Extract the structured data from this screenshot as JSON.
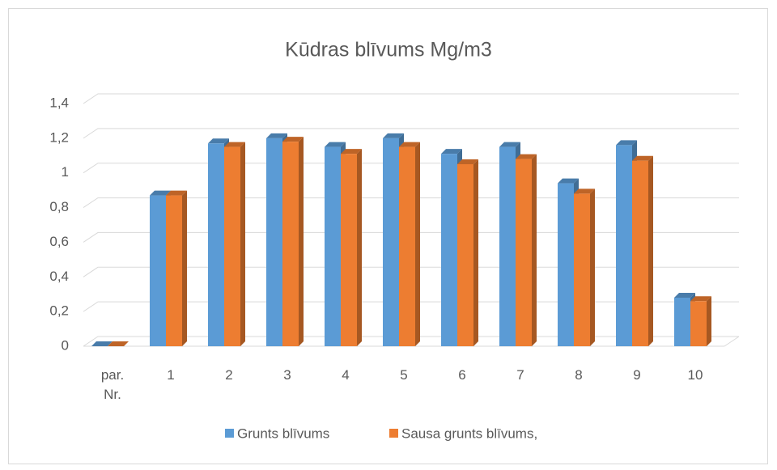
{
  "chart_data": {
    "type": "bar3d",
    "title": "Kūdras blīvums Mg/m3",
    "categories": [
      "par. Nr.",
      "1",
      "2",
      "3",
      "4",
      "5",
      "6",
      "7",
      "8",
      "9",
      "10"
    ],
    "series": [
      {
        "name": "Grunts blīvums",
        "color": "#5b9bd5",
        "values": [
          0,
          0.87,
          1.17,
          1.2,
          1.15,
          1.2,
          1.11,
          1.15,
          0.94,
          1.16,
          0.28
        ]
      },
      {
        "name": "Sausa grunts blīvums,",
        "color": "#ed7d31",
        "values": [
          0,
          0.87,
          1.15,
          1.18,
          1.11,
          1.15,
          1.05,
          1.08,
          0.88,
          1.07,
          0.26
        ]
      }
    ],
    "ylim": [
      0,
      1.4
    ],
    "yticks": [
      0,
      {
        "value": 0.2,
        "label": "0,2"
      },
      {
        "value": 0.4,
        "label": "0,4"
      },
      {
        "value": 0.6,
        "label": "0,6"
      },
      {
        "value": 0.8,
        "label": "0,8"
      },
      1,
      {
        "value": 1.2,
        "label": "1,2"
      },
      {
        "value": 1.4,
        "label": "1,4"
      }
    ],
    "grid": true,
    "legend": "bottom"
  }
}
